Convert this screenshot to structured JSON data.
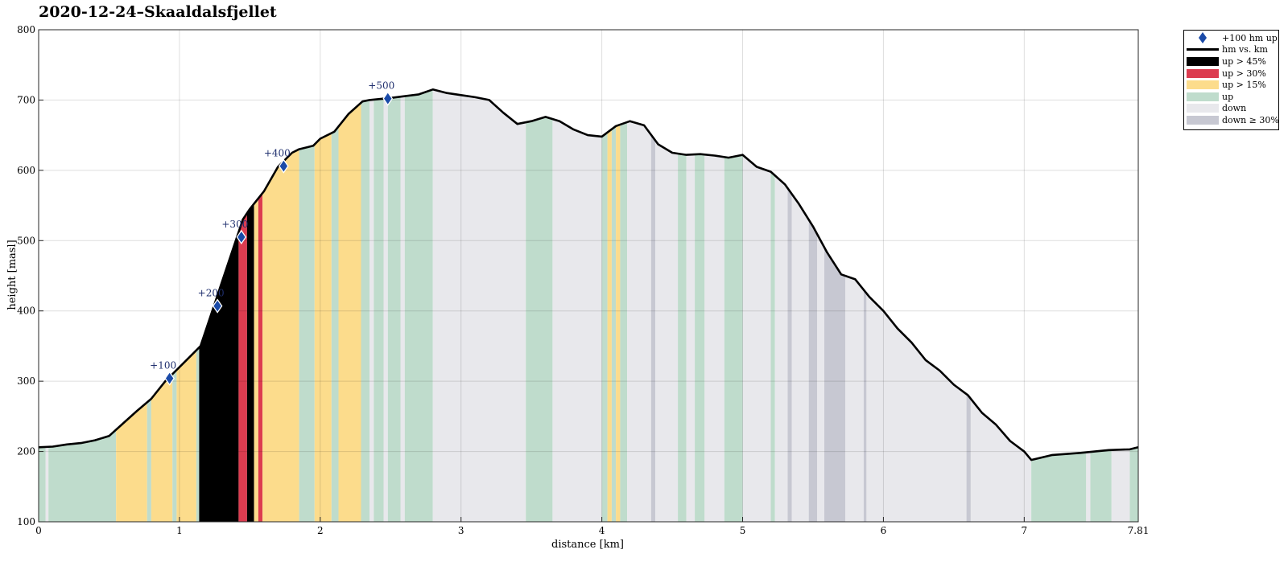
{
  "title": "2020-12-24–Skaaldalsfjellet",
  "chart_data": {
    "type": "area",
    "xlabel": "distance [km]",
    "ylabel": "height [masl]",
    "xlim": [
      0,
      7.81
    ],
    "ylim": [
      100,
      800
    ],
    "x_ticks": [
      "0",
      "1",
      "2",
      "3",
      "4",
      "5",
      "6",
      "7",
      "7.81"
    ],
    "x_tick_values": [
      0,
      1,
      2,
      3,
      4,
      5,
      6,
      7,
      7.81
    ],
    "y_ticks": [
      "100",
      "200",
      "300",
      "400",
      "500",
      "600",
      "700",
      "800"
    ],
    "y_tick_values": [
      100,
      200,
      300,
      400,
      500,
      600,
      700,
      800
    ],
    "grid": true,
    "legend_position": "outside-top-right",
    "profile": {
      "name": "hm vs. km",
      "x": [
        0,
        0.1,
        0.2,
        0.3,
        0.4,
        0.5,
        0.6,
        0.7,
        0.8,
        0.9,
        1.0,
        1.1,
        1.15,
        1.2,
        1.3,
        1.4,
        1.45,
        1.5,
        1.6,
        1.7,
        1.8,
        1.85,
        1.95,
        2.0,
        2.1,
        2.2,
        2.3,
        2.35,
        2.5,
        2.7,
        2.8,
        2.9,
        3.0,
        3.1,
        3.2,
        3.3,
        3.4,
        3.5,
        3.6,
        3.7,
        3.8,
        3.9,
        4.0,
        4.1,
        4.2,
        4.3,
        4.4,
        4.5,
        4.6,
        4.7,
        4.8,
        4.9,
        5.0,
        5.1,
        5.2,
        5.3,
        5.4,
        5.5,
        5.6,
        5.7,
        5.8,
        5.9,
        6.0,
        6.1,
        6.2,
        6.3,
        6.4,
        6.5,
        6.6,
        6.7,
        6.8,
        6.9,
        7.0,
        7.05,
        7.2,
        7.4,
        7.6,
        7.75,
        7.81
      ],
      "y": [
        206,
        207,
        210,
        212,
        216,
        222,
        240,
        258,
        275,
        300,
        320,
        340,
        350,
        380,
        440,
        500,
        530,
        545,
        570,
        605,
        625,
        630,
        635,
        645,
        655,
        680,
        698,
        700,
        703,
        708,
        715,
        710,
        707,
        704,
        700,
        682,
        666,
        670,
        676,
        670,
        658,
        650,
        648,
        663,
        670,
        664,
        637,
        625,
        622,
        623,
        621,
        618,
        622,
        605,
        598,
        580,
        552,
        520,
        483,
        452,
        445,
        420,
        400,
        375,
        355,
        330,
        315,
        295,
        280,
        255,
        238,
        215,
        200,
        188,
        195,
        198,
        202,
        203,
        206
      ]
    },
    "segments": [
      {
        "start": 0.0,
        "end": 0.05,
        "class": "up"
      },
      {
        "start": 0.05,
        "end": 0.07,
        "class": "down"
      },
      {
        "start": 0.07,
        "end": 0.55,
        "class": "up"
      },
      {
        "start": 0.55,
        "end": 0.77,
        "class": "up > 15%"
      },
      {
        "start": 0.77,
        "end": 0.8,
        "class": "up"
      },
      {
        "start": 0.8,
        "end": 0.95,
        "class": "up > 15%"
      },
      {
        "start": 0.95,
        "end": 0.98,
        "class": "up"
      },
      {
        "start": 0.98,
        "end": 1.12,
        "class": "up > 15%"
      },
      {
        "start": 1.12,
        "end": 1.14,
        "class": "up"
      },
      {
        "start": 1.14,
        "end": 1.42,
        "class": "up > 45%"
      },
      {
        "start": 1.42,
        "end": 1.48,
        "class": "up > 30%"
      },
      {
        "start": 1.48,
        "end": 1.53,
        "class": "up > 45%"
      },
      {
        "start": 1.53,
        "end": 1.56,
        "class": "up > 15%"
      },
      {
        "start": 1.56,
        "end": 1.59,
        "class": "up > 30%"
      },
      {
        "start": 1.59,
        "end": 1.85,
        "class": "up > 15%"
      },
      {
        "start": 1.85,
        "end": 1.96,
        "class": "up"
      },
      {
        "start": 1.96,
        "end": 2.08,
        "class": "up > 15%"
      },
      {
        "start": 2.08,
        "end": 2.13,
        "class": "up"
      },
      {
        "start": 2.13,
        "end": 2.29,
        "class": "up > 15%"
      },
      {
        "start": 2.29,
        "end": 2.35,
        "class": "up"
      },
      {
        "start": 2.35,
        "end": 2.38,
        "class": "down"
      },
      {
        "start": 2.38,
        "end": 2.45,
        "class": "up"
      },
      {
        "start": 2.45,
        "end": 2.48,
        "class": "down"
      },
      {
        "start": 2.48,
        "end": 2.57,
        "class": "up"
      },
      {
        "start": 2.57,
        "end": 2.6,
        "class": "down"
      },
      {
        "start": 2.6,
        "end": 2.8,
        "class": "up"
      },
      {
        "start": 2.8,
        "end": 3.46,
        "class": "down"
      },
      {
        "start": 3.46,
        "end": 3.65,
        "class": "up"
      },
      {
        "start": 3.65,
        "end": 4.0,
        "class": "down"
      },
      {
        "start": 4.0,
        "end": 4.04,
        "class": "up"
      },
      {
        "start": 4.04,
        "end": 4.07,
        "class": "up > 15%"
      },
      {
        "start": 4.07,
        "end": 4.1,
        "class": "up"
      },
      {
        "start": 4.1,
        "end": 4.13,
        "class": "up > 15%"
      },
      {
        "start": 4.13,
        "end": 4.18,
        "class": "up"
      },
      {
        "start": 4.18,
        "end": 4.35,
        "class": "down"
      },
      {
        "start": 4.35,
        "end": 4.38,
        "class": "down ≥ 30%"
      },
      {
        "start": 4.38,
        "end": 4.54,
        "class": "down"
      },
      {
        "start": 4.54,
        "end": 4.6,
        "class": "up"
      },
      {
        "start": 4.6,
        "end": 4.66,
        "class": "down"
      },
      {
        "start": 4.66,
        "end": 4.73,
        "class": "up"
      },
      {
        "start": 4.73,
        "end": 4.87,
        "class": "down"
      },
      {
        "start": 4.87,
        "end": 5.0,
        "class": "up"
      },
      {
        "start": 5.0,
        "end": 5.2,
        "class": "down"
      },
      {
        "start": 5.2,
        "end": 5.23,
        "class": "up"
      },
      {
        "start": 5.23,
        "end": 5.32,
        "class": "down"
      },
      {
        "start": 5.32,
        "end": 5.35,
        "class": "down ≥ 30%"
      },
      {
        "start": 5.35,
        "end": 5.47,
        "class": "down"
      },
      {
        "start": 5.47,
        "end": 5.53,
        "class": "down ≥ 30%"
      },
      {
        "start": 5.53,
        "end": 5.58,
        "class": "down"
      },
      {
        "start": 5.58,
        "end": 5.73,
        "class": "down ≥ 30%"
      },
      {
        "start": 5.73,
        "end": 5.86,
        "class": "down"
      },
      {
        "start": 5.86,
        "end": 5.88,
        "class": "down ≥ 30%"
      },
      {
        "start": 5.88,
        "end": 6.59,
        "class": "down"
      },
      {
        "start": 6.59,
        "end": 6.62,
        "class": "down ≥ 30%"
      },
      {
        "start": 6.62,
        "end": 7.05,
        "class": "down"
      },
      {
        "start": 7.05,
        "end": 7.44,
        "class": "up"
      },
      {
        "start": 7.44,
        "end": 7.47,
        "class": "down"
      },
      {
        "start": 7.47,
        "end": 7.62,
        "class": "up"
      },
      {
        "start": 7.62,
        "end": 7.75,
        "class": "down"
      },
      {
        "start": 7.75,
        "end": 7.81,
        "class": "up"
      }
    ],
    "milestones": [
      {
        "label": "+100",
        "x": 0.93,
        "y": 304
      },
      {
        "label": "+200",
        "x": 1.27,
        "y": 407
      },
      {
        "label": "+300",
        "x": 1.44,
        "y": 505
      },
      {
        "label": "+400",
        "x": 1.74,
        "y": 606
      },
      {
        "label": "+500",
        "x": 2.48,
        "y": 702
      }
    ],
    "colors": {
      "up > 45%": "#000000",
      "up > 30%": "#dc3c50",
      "up > 15%": "#fcdc8c",
      "up": "#bfdccc",
      "down": "#e8e8ec",
      "down ≥ 30%": "#c7c8d2",
      "marker": "#1a4aa8",
      "line": "#000000"
    },
    "legend": [
      {
        "kind": "marker",
        "label": "+100 hm up"
      },
      {
        "kind": "line",
        "label": "hm vs. km"
      },
      {
        "kind": "swatch",
        "class": "up > 45%",
        "label": "up > 45%"
      },
      {
        "kind": "swatch",
        "class": "up > 30%",
        "label": "up > 30%"
      },
      {
        "kind": "swatch",
        "class": "up > 15%",
        "label": "up > 15%"
      },
      {
        "kind": "swatch",
        "class": "up",
        "label": "up"
      },
      {
        "kind": "swatch",
        "class": "down",
        "label": "down"
      },
      {
        "kind": "swatch",
        "class": "down ≥ 30%",
        "label": "down ≥ 30%"
      }
    ]
  }
}
